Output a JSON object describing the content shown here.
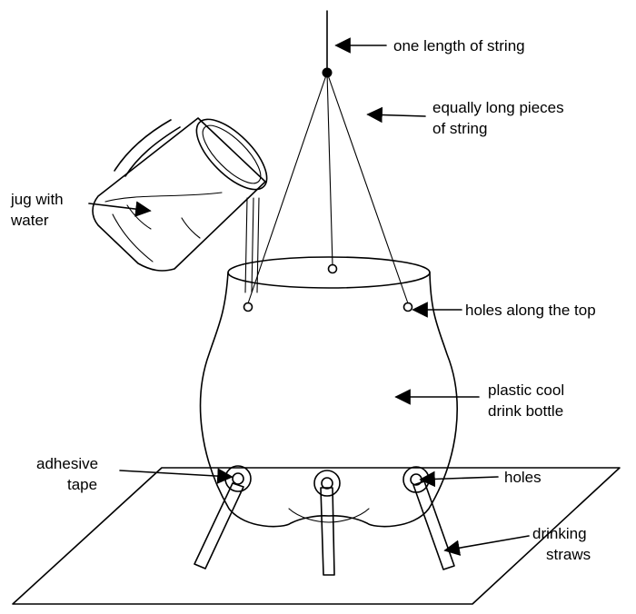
{
  "labels": {
    "one_length_string": "one length of string",
    "equal_pieces_line1": "equally long pieces",
    "equal_pieces_line2": "of string",
    "jug_line1": "jug with",
    "jug_line2": "water",
    "holes_top": "holes along the top",
    "bottle_line1": "plastic cool",
    "bottle_line2": "drink bottle",
    "tape_line1": "adhesive",
    "tape_line2": "tape",
    "holes": "holes",
    "straws_line1": "drinking",
    "straws_line2": "straws"
  },
  "colors": {
    "ink": "#000000",
    "background": "#ffffff"
  }
}
